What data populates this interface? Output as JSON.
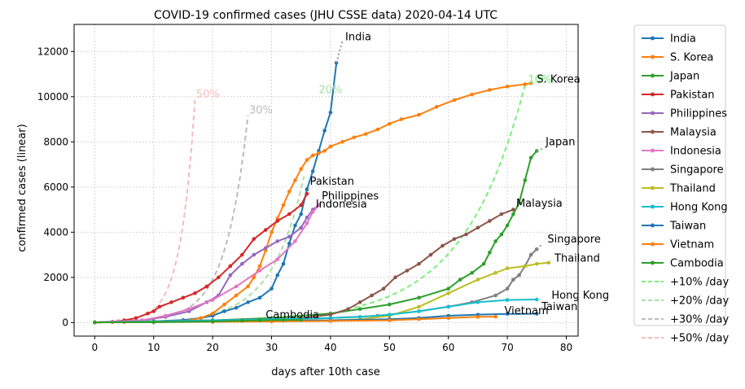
{
  "chart_data": {
    "type": "line",
    "title": "COVID-19 confirmed cases (JHU CSSE data) 2020-04-14 UTC",
    "xlabel": "days after 10th case",
    "ylabel": "confirmed cases (linear)",
    "xlim": [
      -3.5,
      82
    ],
    "ylim": [
      -600,
      13200
    ],
    "xticks": [
      0,
      10,
      20,
      30,
      40,
      50,
      60,
      70,
      80
    ],
    "yticks": [
      0,
      2000,
      4000,
      6000,
      8000,
      10000,
      12000
    ],
    "grid": true,
    "legend_position": "outside-right",
    "series": [
      {
        "name": "India",
        "color": "#1f77b4",
        "points": [
          [
            0,
            10
          ],
          [
            5,
            30
          ],
          [
            10,
            60
          ],
          [
            15,
            110
          ],
          [
            18,
            200
          ],
          [
            20,
            300
          ],
          [
            22,
            500
          ],
          [
            24,
            650
          ],
          [
            26,
            900
          ],
          [
            28,
            1100
          ],
          [
            30,
            1500
          ],
          [
            31,
            2100
          ],
          [
            32,
            2600
          ],
          [
            33,
            3500
          ],
          [
            34,
            4300
          ],
          [
            35,
            4800
          ],
          [
            36,
            5900
          ],
          [
            37,
            6700
          ],
          [
            38,
            7600
          ],
          [
            39,
            8500
          ],
          [
            40,
            9300
          ],
          [
            41,
            11500
          ]
        ],
        "proj": [
          [
            41,
            11500
          ],
          [
            42,
            12450
          ]
        ],
        "label": "India",
        "label_at": [
          42.5,
          12500
        ]
      },
      {
        "name": "S. Korea",
        "color": "#ff7f0e",
        "points": [
          [
            0,
            10
          ],
          [
            5,
            20
          ],
          [
            10,
            30
          ],
          [
            15,
            60
          ],
          [
            18,
            200
          ],
          [
            20,
            400
          ],
          [
            22,
            800
          ],
          [
            24,
            1200
          ],
          [
            26,
            1600
          ],
          [
            27,
            2000
          ],
          [
            28,
            2500
          ],
          [
            29,
            3200
          ],
          [
            30,
            4000
          ],
          [
            31,
            4600
          ],
          [
            32,
            5200
          ],
          [
            33,
            5800
          ],
          [
            34,
            6300
          ],
          [
            35,
            6800
          ],
          [
            36,
            7200
          ],
          [
            37,
            7400
          ],
          [
            38,
            7500
          ],
          [
            39,
            7600
          ],
          [
            40,
            7800
          ],
          [
            42,
            8000
          ],
          [
            44,
            8200
          ],
          [
            46,
            8350
          ],
          [
            48,
            8550
          ],
          [
            50,
            8800
          ],
          [
            52,
            9000
          ],
          [
            55,
            9200
          ],
          [
            58,
            9550
          ],
          [
            61,
            9850
          ],
          [
            64,
            10100
          ],
          [
            67,
            10300
          ],
          [
            70,
            10450
          ],
          [
            73,
            10550
          ],
          [
            74,
            10600
          ]
        ],
        "label": "S. Korea",
        "label_at": [
          75,
          10620
        ]
      },
      {
        "name": "Japan",
        "color": "#2ca02c",
        "points": [
          [
            0,
            10
          ],
          [
            10,
            40
          ],
          [
            20,
            100
          ],
          [
            30,
            200
          ],
          [
            40,
            400
          ],
          [
            45,
            600
          ],
          [
            50,
            800
          ],
          [
            55,
            1100
          ],
          [
            60,
            1500
          ],
          [
            62,
            1900
          ],
          [
            64,
            2200
          ],
          [
            66,
            2600
          ],
          [
            67,
            3100
          ],
          [
            68,
            3600
          ],
          [
            69,
            3900
          ],
          [
            70,
            4300
          ],
          [
            71,
            4800
          ],
          [
            72,
            5300
          ],
          [
            73,
            6300
          ],
          [
            74,
            7300
          ],
          [
            75,
            7600
          ]
        ],
        "proj": [
          [
            75,
            7600
          ],
          [
            76,
            7700
          ]
        ],
        "label": "Japan",
        "label_at": [
          76.5,
          7850
        ]
      },
      {
        "name": "Pakistan",
        "color": "#d62728",
        "points": [
          [
            0,
            10
          ],
          [
            3,
            30
          ],
          [
            5,
            100
          ],
          [
            7,
            200
          ],
          [
            9,
            400
          ],
          [
            10,
            500
          ],
          [
            11,
            700
          ],
          [
            13,
            900
          ],
          [
            15,
            1100
          ],
          [
            17,
            1300
          ],
          [
            19,
            1600
          ],
          [
            21,
            2000
          ],
          [
            23,
            2500
          ],
          [
            25,
            3000
          ],
          [
            27,
            3700
          ],
          [
            29,
            4100
          ],
          [
            31,
            4500
          ],
          [
            33,
            4800
          ],
          [
            35,
            5200
          ],
          [
            36,
            5700
          ]
        ],
        "label": "Pakistan",
        "label_at": [
          36.5,
          6100
        ]
      },
      {
        "name": "Philippines",
        "color": "#9467bd",
        "points": [
          [
            0,
            10
          ],
          [
            4,
            50
          ],
          [
            8,
            100
          ],
          [
            12,
            250
          ],
          [
            16,
            500
          ],
          [
            19,
            900
          ],
          [
            21,
            1200
          ],
          [
            23,
            2100
          ],
          [
            25,
            2600
          ],
          [
            27,
            3000
          ],
          [
            29,
            3300
          ],
          [
            31,
            3600
          ],
          [
            33,
            3800
          ],
          [
            35,
            4200
          ],
          [
            36,
            4650
          ],
          [
            37,
            5000
          ],
          [
            38,
            5200
          ]
        ],
        "label": "Philippines",
        "label_at": [
          38.5,
          5450
        ]
      },
      {
        "name": "Malaysia",
        "color": "#8c564b",
        "points": [
          [
            0,
            10
          ],
          [
            10,
            60
          ],
          [
            20,
            100
          ],
          [
            30,
            150
          ],
          [
            35,
            200
          ],
          [
            40,
            350
          ],
          [
            43,
            600
          ],
          [
            45,
            900
          ],
          [
            47,
            1200
          ],
          [
            49,
            1500
          ],
          [
            51,
            2000
          ],
          [
            53,
            2300
          ],
          [
            55,
            2600
          ],
          [
            57,
            3000
          ],
          [
            59,
            3400
          ],
          [
            61,
            3700
          ],
          [
            63,
            3900
          ],
          [
            65,
            4200
          ],
          [
            67,
            4500
          ],
          [
            69,
            4800
          ],
          [
            71,
            5000
          ]
        ],
        "label": "Malaysia",
        "label_at": [
          71.5,
          5120
        ]
      },
      {
        "name": "Indonesia",
        "color": "#e377c2",
        "points": [
          [
            0,
            10
          ],
          [
            4,
            60
          ],
          [
            8,
            100
          ],
          [
            12,
            300
          ],
          [
            16,
            600
          ],
          [
            20,
            1000
          ],
          [
            24,
            1600
          ],
          [
            28,
            2300
          ],
          [
            31,
            2800
          ],
          [
            34,
            3600
          ],
          [
            36,
            4400
          ],
          [
            37,
            4900
          ],
          [
            38,
            5200
          ]
        ],
        "label": "Indonesia",
        "label_at": [
          37.5,
          5100
        ]
      },
      {
        "name": "Singapore",
        "color": "#7f7f7f",
        "points": [
          [
            0,
            10
          ],
          [
            10,
            60
          ],
          [
            20,
            100
          ],
          [
            30,
            110
          ],
          [
            40,
            200
          ],
          [
            48,
            300
          ],
          [
            55,
            500
          ],
          [
            60,
            700
          ],
          [
            64,
            900
          ],
          [
            68,
            1200
          ],
          [
            70,
            1500
          ],
          [
            71,
            1900
          ],
          [
            72,
            2100
          ],
          [
            73,
            2500
          ],
          [
            74,
            3000
          ],
          [
            75,
            3250
          ]
        ],
        "proj": [
          [
            75,
            3250
          ],
          [
            76,
            3500
          ]
        ],
        "label": "Singapore",
        "label_at": [
          76.8,
          3550
        ]
      },
      {
        "name": "Thailand",
        "color": "#bcbd22",
        "points": [
          [
            0,
            10
          ],
          [
            10,
            20
          ],
          [
            20,
            50
          ],
          [
            30,
            80
          ],
          [
            40,
            100
          ],
          [
            45,
            150
          ],
          [
            50,
            300
          ],
          [
            55,
            700
          ],
          [
            60,
            1300
          ],
          [
            65,
            1900
          ],
          [
            68,
            2200
          ],
          [
            70,
            2400
          ],
          [
            73,
            2500
          ],
          [
            75,
            2600
          ],
          [
            77,
            2650
          ]
        ],
        "label": "Thailand",
        "label_at": [
          78,
          2700
        ]
      },
      {
        "name": "Hong Kong",
        "color": "#17becf",
        "points": [
          [
            0,
            10
          ],
          [
            10,
            60
          ],
          [
            20,
            100
          ],
          [
            30,
            150
          ],
          [
            40,
            200
          ],
          [
            45,
            250
          ],
          [
            50,
            350
          ],
          [
            55,
            500
          ],
          [
            60,
            700
          ],
          [
            65,
            900
          ],
          [
            70,
            1000
          ],
          [
            75,
            1020
          ]
        ],
        "label": "Hong Kong",
        "label_at": [
          77.5,
          1050
        ]
      },
      {
        "name": "Taiwan",
        "color": "#1f77b4",
        "points": [
          [
            0,
            10
          ],
          [
            10,
            30
          ],
          [
            20,
            50
          ],
          [
            30,
            70
          ],
          [
            40,
            100
          ],
          [
            50,
            150
          ],
          [
            55,
            200
          ],
          [
            60,
            300
          ],
          [
            65,
            350
          ],
          [
            70,
            380
          ],
          [
            75,
            390
          ]
        ],
        "label": "Taiwan",
        "label_at": [
          75.8,
          550
        ]
      },
      {
        "name": "Vietnam",
        "color": "#ff7f0e",
        "points": [
          [
            0,
            10
          ],
          [
            10,
            20
          ],
          [
            20,
            30
          ],
          [
            30,
            50
          ],
          [
            40,
            70
          ],
          [
            50,
            100
          ],
          [
            55,
            150
          ],
          [
            60,
            200
          ],
          [
            65,
            250
          ],
          [
            68,
            260
          ]
        ],
        "label": "Vietnam",
        "label_at": [
          69.5,
          380
        ]
      },
      {
        "name": "Cambodia",
        "color": "#2ca02c",
        "points": [
          [
            0,
            10
          ],
          [
            10,
            15
          ],
          [
            20,
            50
          ],
          [
            25,
            80
          ],
          [
            28,
            100
          ],
          [
            32,
            110
          ],
          [
            35,
            115
          ]
        ],
        "label": "Cambodia",
        "label_at": [
          29,
          200
        ]
      }
    ],
    "reference": [
      {
        "name": "+10% /day",
        "color": "#7aef7a",
        "rate": 0.1,
        "range": [
          44,
          73
        ],
        "label": "10%",
        "label_at": [
          73.5,
          10600
        ]
      },
      {
        "name": "+20% /day",
        "color": "#a8e0a8",
        "rate": 0.2,
        "range": [
          20,
          35.5
        ],
        "label": "20%",
        "label_at": [
          38,
          10150
        ]
      },
      {
        "name": "+30% /day",
        "color": "#bcbcbc",
        "rate": 0.3,
        "range": [
          15,
          26
        ],
        "label": "30%",
        "label_at": [
          26.2,
          9250
        ]
      },
      {
        "name": "+50% /day",
        "color": "#f7baba",
        "rate": 0.5,
        "range": [
          9,
          17
        ],
        "label": "50%",
        "label_at": [
          17.2,
          9950
        ]
      }
    ]
  }
}
